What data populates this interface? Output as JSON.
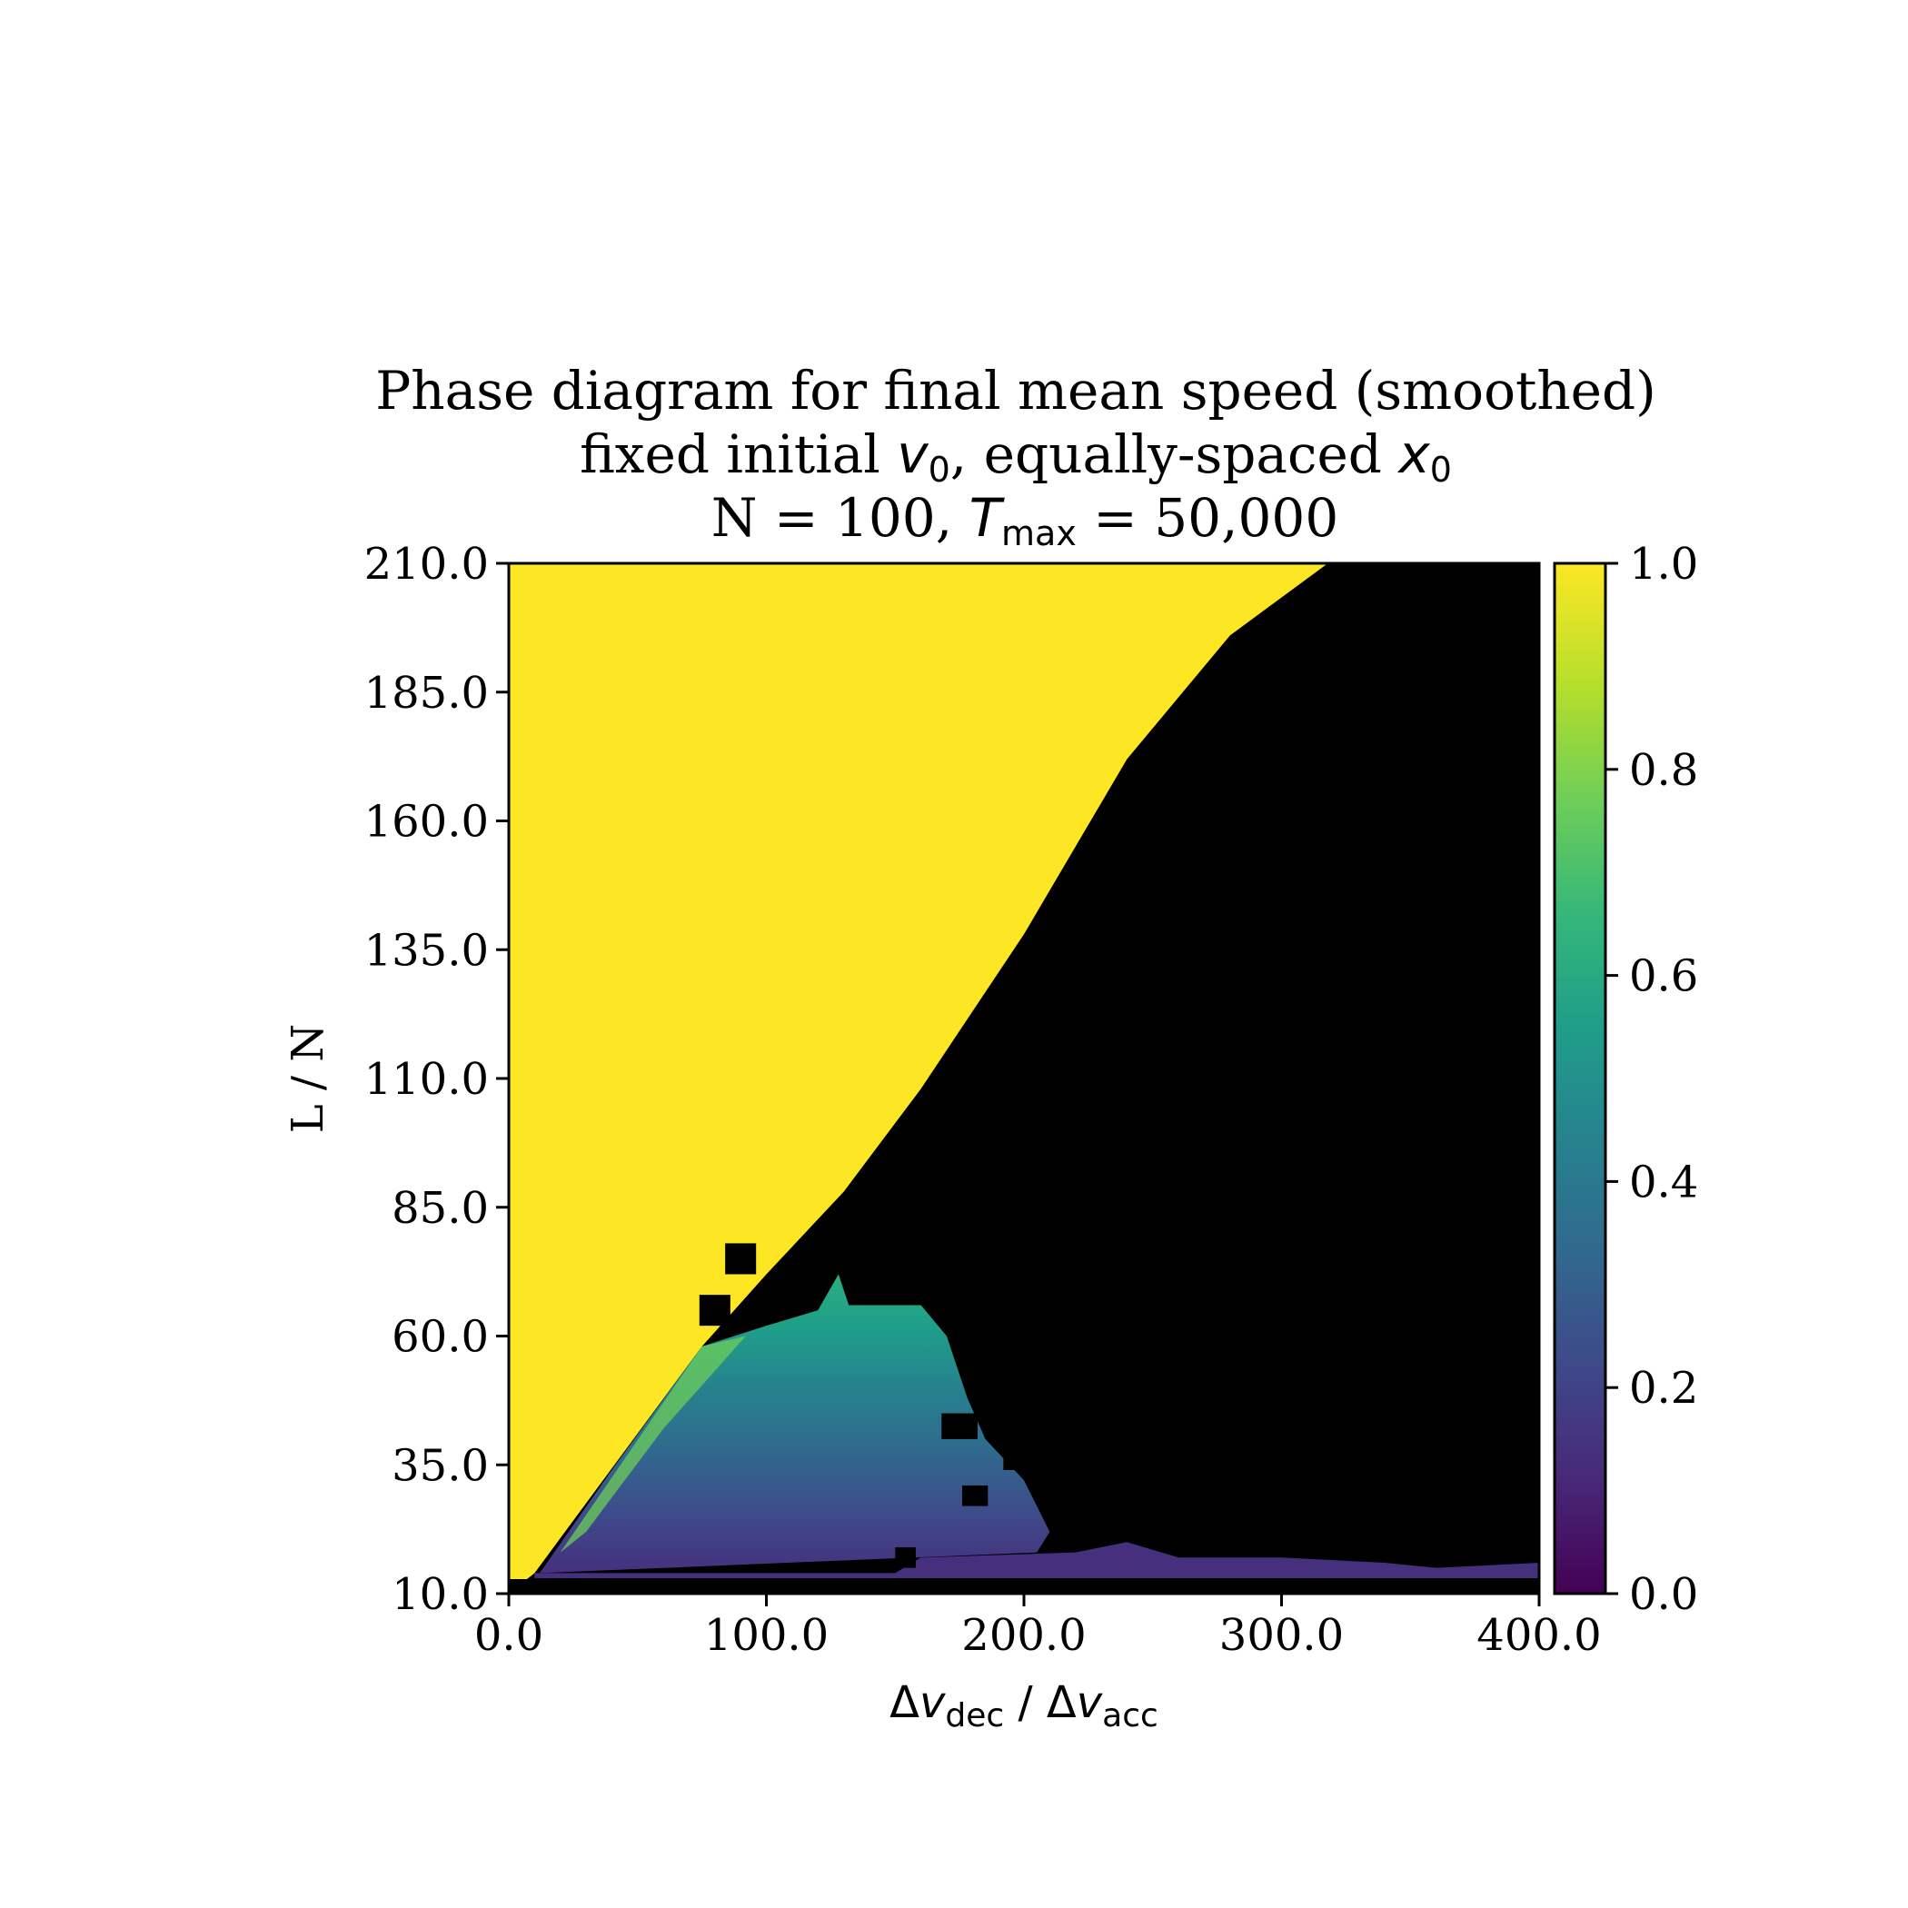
{
  "chart_data": {
    "type": "heatmap",
    "title": {
      "line1": "Phase diagram for final mean speed (smoothed)",
      "line2_prefix": "fixed initial ",
      "line2_v_sym": "v",
      "line2_v_sub": "0",
      "line2_mid": ", equally-spaced ",
      "line2_x_sym": "x",
      "line2_x_sub": "0",
      "line3_prefix": "N = 100, ",
      "line3_t_sym": "T",
      "line3_t_sub": "max",
      "line3_suffix": " = 50,000"
    },
    "xlabel": {
      "delta1": "Δ",
      "sym1": "v",
      "sub1": "dec",
      "slash": " / ",
      "delta2": "Δ",
      "sym2": "v",
      "sub2": "acc"
    },
    "ylabel": "L / N",
    "xlim": [
      0,
      400
    ],
    "ylim": [
      10,
      210
    ],
    "x_ticks": [
      "0.0",
      "100.0",
      "200.0",
      "300.0",
      "400.0"
    ],
    "y_ticks": [
      "10.0",
      "35.0",
      "60.0",
      "85.0",
      "110.0",
      "135.0",
      "160.0",
      "185.0",
      "210.0"
    ],
    "colorbar": {
      "colormap": "viridis",
      "range": [
        0,
        1
      ],
      "ticks": [
        "0.0",
        "0.2",
        "0.4",
        "0.6",
        "0.8",
        "1.0"
      ]
    },
    "regions": {
      "free_flow_value": 1.0,
      "jam_value": 0.0,
      "free_flow_boundary": [
        [
          0,
          10
        ],
        [
          10,
          14
        ],
        [
          75,
          58
        ],
        [
          100,
          72
        ],
        [
          130,
          88
        ],
        [
          160,
          108
        ],
        [
          200,
          138
        ],
        [
          240,
          172
        ],
        [
          280,
          196
        ],
        [
          318,
          210
        ]
      ],
      "intermediate_region_note": "",
      "intermediate_max_value": 0.8,
      "floor_band_value": 0.15
    },
    "colors": {
      "free_flow": "#fde725",
      "jam": "#000000",
      "viridis": [
        "#440154",
        "#482878",
        "#3e4989",
        "#31688e",
        "#26828e",
        "#1f9e89",
        "#35b779",
        "#6ece58",
        "#b5de2b",
        "#fde725"
      ]
    }
  }
}
